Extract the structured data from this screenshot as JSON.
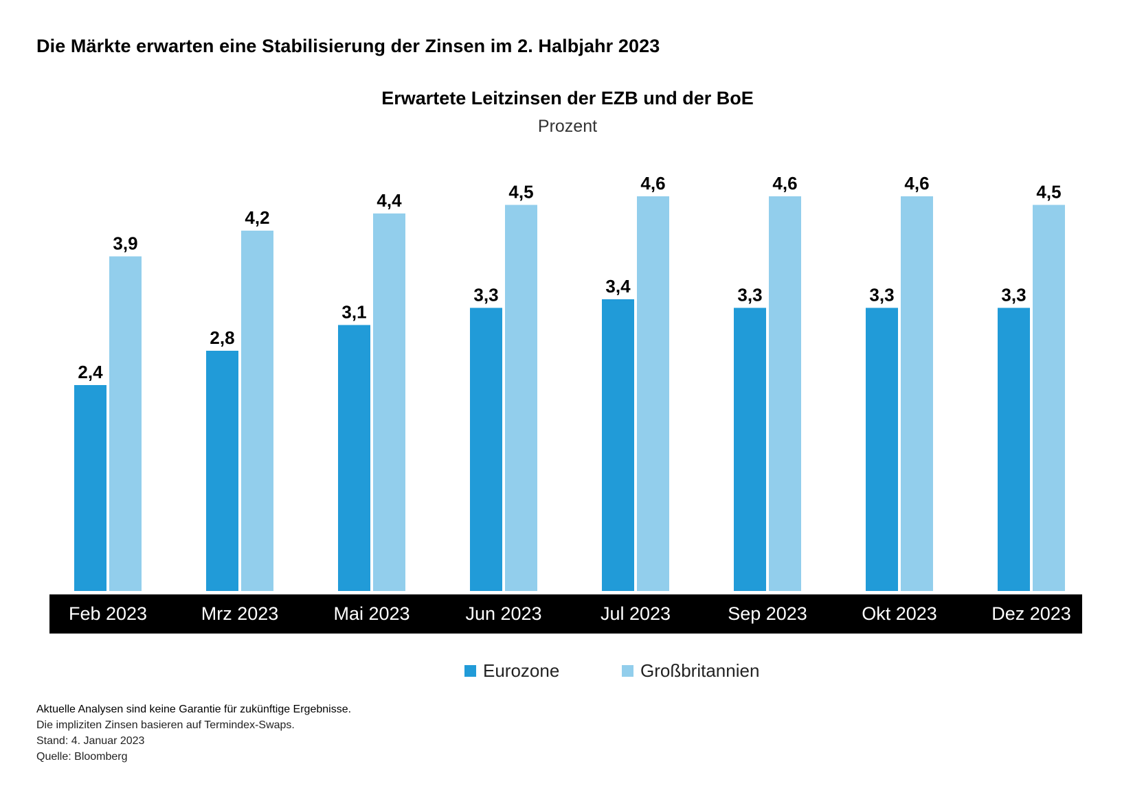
{
  "headline": "Die Märkte erwarten eine Stabilisierung der Zinsen im 2. Halbjahr 2023",
  "colors": {
    "eurozone": "#219BD8",
    "uk": "#92CEEC",
    "axis_band": "#000000",
    "axis_text": "#ffffff"
  },
  "chart_data": {
    "type": "bar",
    "title": "Erwartete Leitzinsen der EZB und der BoE",
    "subtitle": "Prozent",
    "categories": [
      "Feb 2023",
      "Mrz 2023",
      "Mai 2023",
      "Jun 2023",
      "Jul 2023",
      "Sep 2023",
      "Okt 2023",
      "Dez 2023"
    ],
    "series": [
      {
        "name": "Eurozone",
        "values": [
          2.4,
          2.8,
          3.1,
          3.3,
          3.4,
          3.3,
          3.3,
          3.3
        ],
        "labels": [
          "2,4",
          "2,8",
          "3,1",
          "3,3",
          "3,4",
          "3,3",
          "3,3",
          "3,3"
        ]
      },
      {
        "name": "Großbritannien",
        "values": [
          3.9,
          4.2,
          4.4,
          4.5,
          4.6,
          4.6,
          4.6,
          4.5
        ],
        "labels": [
          "3,9",
          "4,2",
          "4,4",
          "4,5",
          "4,6",
          "4,6",
          "4,6",
          "4,5"
        ]
      }
    ],
    "xlabel": "",
    "ylabel": "Prozent",
    "ylim": [
      0,
      4.6
    ],
    "grid": false,
    "legend": "bottom-center"
  },
  "footnotes": [
    "Aktuelle Analysen sind keine Garantie für zukünftige Ergebnisse.",
    "Die impliziten Zinsen basieren auf Termindex-Swaps.",
    "Stand: 4. Januar 2023",
    "Quelle: Bloomberg"
  ]
}
